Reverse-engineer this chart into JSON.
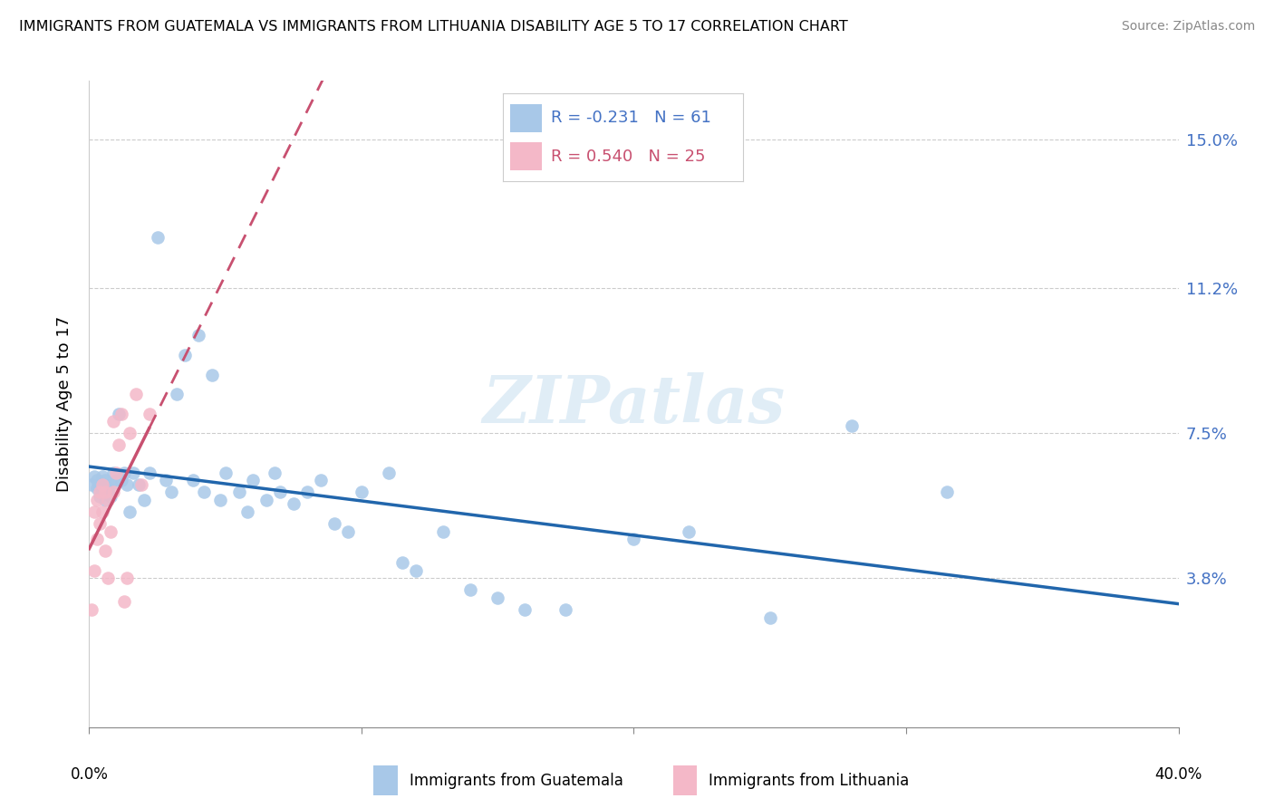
{
  "title": "IMMIGRANTS FROM GUATEMALA VS IMMIGRANTS FROM LITHUANIA DISABILITY AGE 5 TO 17 CORRELATION CHART",
  "source": "Source: ZipAtlas.com",
  "ylabel": "Disability Age 5 to 17",
  "ytick_labels": [
    "3.8%",
    "7.5%",
    "11.2%",
    "15.0%"
  ],
  "ytick_values": [
    0.038,
    0.075,
    0.112,
    0.15
  ],
  "xlim": [
    0.0,
    0.4
  ],
  "ylim": [
    0.0,
    0.165
  ],
  "legend_blue_r": "R = -0.231",
  "legend_blue_n": "N = 61",
  "legend_pink_r": "R = 0.540",
  "legend_pink_n": "N = 25",
  "legend_label_blue": "Immigrants from Guatemala",
  "legend_label_pink": "Immigrants from Lithuania",
  "watermark": "ZIPatlas",
  "blue_color": "#a8c8e8",
  "blue_line_color": "#2166ac",
  "pink_color": "#f4b8c8",
  "pink_line_color": "#c85070",
  "axis_color": "#4472c4",
  "grid_color": "#cccccc",
  "r_blue": -0.231,
  "r_pink": 0.54,
  "n_blue": 61,
  "n_pink": 25,
  "blue_dots_x": [
    0.001,
    0.002,
    0.003,
    0.003,
    0.004,
    0.004,
    0.005,
    0.005,
    0.006,
    0.006,
    0.007,
    0.007,
    0.008,
    0.008,
    0.009,
    0.01,
    0.011,
    0.012,
    0.013,
    0.014,
    0.015,
    0.016,
    0.018,
    0.02,
    0.022,
    0.025,
    0.028,
    0.03,
    0.032,
    0.035,
    0.038,
    0.04,
    0.042,
    0.045,
    0.048,
    0.05,
    0.055,
    0.058,
    0.06,
    0.065,
    0.068,
    0.07,
    0.075,
    0.08,
    0.085,
    0.09,
    0.095,
    0.1,
    0.11,
    0.115,
    0.12,
    0.13,
    0.14,
    0.15,
    0.16,
    0.175,
    0.2,
    0.22,
    0.25,
    0.28,
    0.315
  ],
  "blue_dots_y": [
    0.062,
    0.064,
    0.061,
    0.063,
    0.059,
    0.062,
    0.06,
    0.064,
    0.058,
    0.063,
    0.061,
    0.06,
    0.059,
    0.062,
    0.065,
    0.063,
    0.08,
    0.063,
    0.065,
    0.062,
    0.055,
    0.065,
    0.062,
    0.058,
    0.065,
    0.125,
    0.063,
    0.06,
    0.085,
    0.095,
    0.063,
    0.1,
    0.06,
    0.09,
    0.058,
    0.065,
    0.06,
    0.055,
    0.063,
    0.058,
    0.065,
    0.06,
    0.057,
    0.06,
    0.063,
    0.052,
    0.05,
    0.06,
    0.065,
    0.042,
    0.04,
    0.05,
    0.035,
    0.033,
    0.03,
    0.03,
    0.048,
    0.05,
    0.028,
    0.077,
    0.06
  ],
  "pink_dots_x": [
    0.001,
    0.002,
    0.002,
    0.003,
    0.003,
    0.004,
    0.004,
    0.005,
    0.005,
    0.006,
    0.006,
    0.007,
    0.007,
    0.008,
    0.009,
    0.009,
    0.01,
    0.011,
    0.012,
    0.013,
    0.014,
    0.015,
    0.017,
    0.019,
    0.022
  ],
  "pink_dots_y": [
    0.03,
    0.055,
    0.04,
    0.058,
    0.048,
    0.052,
    0.06,
    0.055,
    0.062,
    0.045,
    0.06,
    0.058,
    0.038,
    0.05,
    0.06,
    0.078,
    0.065,
    0.072,
    0.08,
    0.032,
    0.038,
    0.075,
    0.085,
    0.062,
    0.08
  ]
}
